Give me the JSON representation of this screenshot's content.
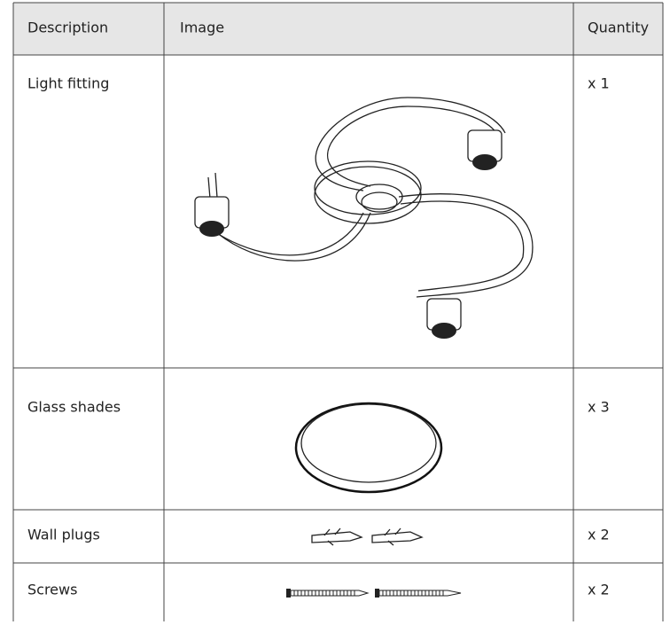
{
  "table": {
    "header": [
      "Description",
      "Image",
      "Quantity"
    ],
    "rows": [
      {
        "description": "Light fitting",
        "quantity": "x 1"
      },
      {
        "description": "Glass shades",
        "quantity": "x 3"
      },
      {
        "description": "Wall plugs",
        "quantity": "x 2"
      },
      {
        "description": "Screws",
        "quantity": "x 2"
      }
    ]
  }
}
